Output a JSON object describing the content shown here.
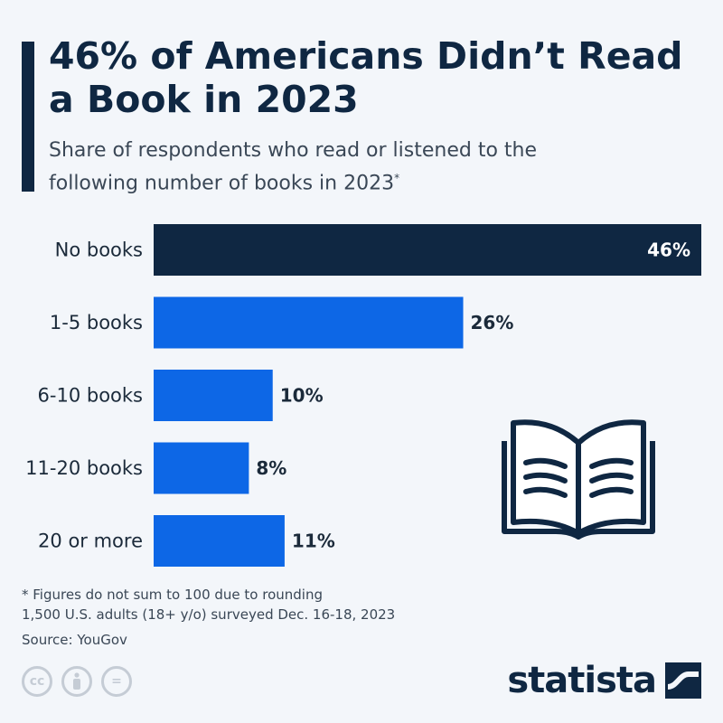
{
  "header": {
    "title": "46% of Americans Didn’t Read a Book in 2023",
    "subtitle": "Share of respondents who read or listened to the following number of books in 2023",
    "subtitle_mark": "*"
  },
  "chart_data": {
    "type": "bar",
    "orientation": "horizontal",
    "categories": [
      "No books",
      "1-5 books",
      "6-10 books",
      "11-20 books",
      "20 or more"
    ],
    "values": [
      46,
      26,
      10,
      8,
      11
    ],
    "value_labels": [
      "46%",
      "26%",
      "10%",
      "8%",
      "11%"
    ],
    "unit": "%",
    "xlim": [
      0,
      46
    ],
    "colors": [
      "#0f2742",
      "#0d67e6",
      "#0d67e6",
      "#0d67e6",
      "#0d67e6"
    ]
  },
  "footer": {
    "note_1": "* Figures do not sum to 100 due to rounding",
    "note_2": "1,500 U.S. adults (18+ y/o) surveyed Dec. 16-18, 2023",
    "source": "Source: YouGov",
    "brand": "statista",
    "license_icons": [
      "cc-icon",
      "by-icon",
      "nd-icon"
    ],
    "cc_text": "cc",
    "nd_text": "="
  }
}
